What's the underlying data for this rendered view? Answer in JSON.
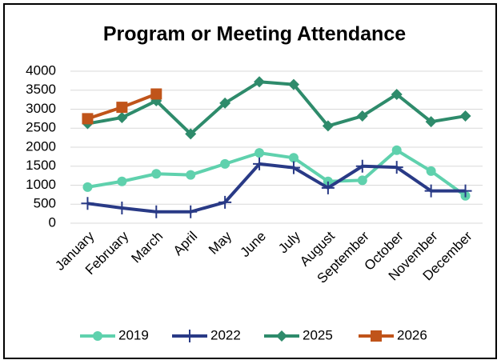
{
  "chart_data": {
    "type": "line",
    "title": "Program or Meeting Attendance",
    "categories": [
      "January",
      "February",
      "March",
      "April",
      "May",
      "June",
      "July",
      "August",
      "September",
      "October",
      "November",
      "December"
    ],
    "series": [
      {
        "name": "2019",
        "color": "#5fd1ad",
        "marker": "circle",
        "values": [
          950,
          1100,
          1300,
          1270,
          1560,
          1850,
          1720,
          1100,
          1130,
          1920,
          1370,
          720
        ]
      },
      {
        "name": "2022",
        "color": "#293a86",
        "marker": "plus",
        "values": [
          520,
          400,
          300,
          300,
          550,
          1560,
          1460,
          930,
          1500,
          1470,
          850,
          850
        ]
      },
      {
        "name": "2025",
        "color": "#2e8b6b",
        "marker": "diamond",
        "values": [
          2620,
          2780,
          3220,
          2350,
          3160,
          3720,
          3650,
          2560,
          2820,
          3390,
          2670,
          2820
        ]
      },
      {
        "name": "2026",
        "color": "#c0541a",
        "marker": "square",
        "values": [
          2750,
          3050,
          3400,
          null,
          null,
          null,
          null,
          null,
          null,
          null,
          null,
          null
        ]
      }
    ],
    "ylim": [
      0,
      4000
    ],
    "yticks": [
      0,
      500,
      1000,
      1500,
      2000,
      2500,
      3000,
      3500,
      4000
    ],
    "grid": true,
    "legend": "bottom"
  }
}
